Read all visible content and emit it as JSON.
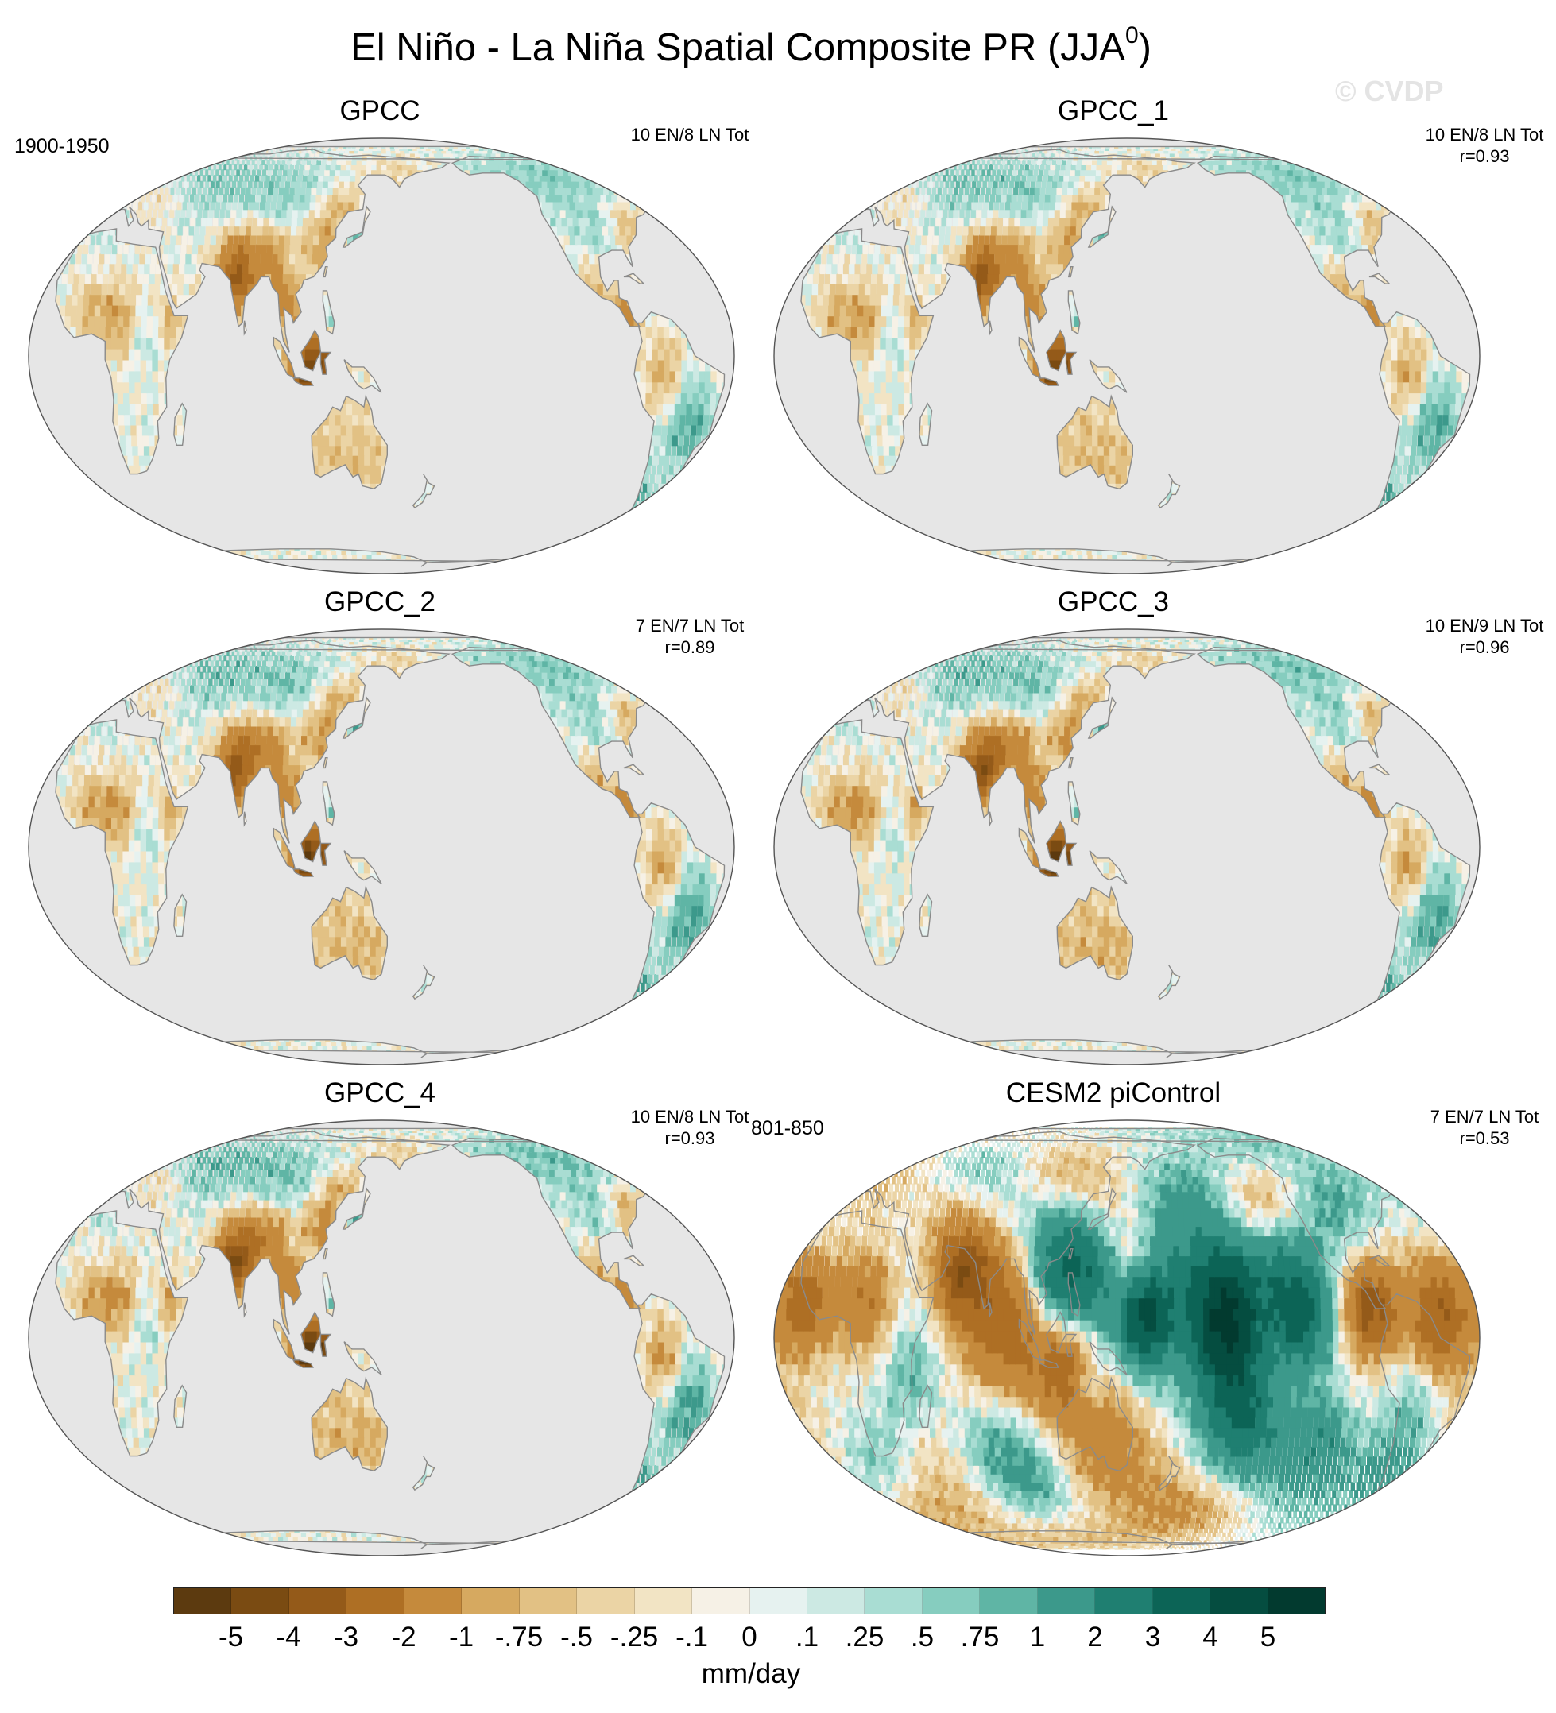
{
  "figure": {
    "title": "El Niño - La Niña Spatial Composite PR (JJA",
    "title_superscript": "0",
    "title_end": ")",
    "watermark": "© CVDP"
  },
  "panels": [
    {
      "title": "GPCC",
      "years": "1900-1950",
      "stats_line1": "10 EN/8 LN Tot",
      "stats_line2": "",
      "field": "observed"
    },
    {
      "title": "GPCC_1",
      "years": "",
      "stats_line1": "10 EN/8 LN Tot",
      "stats_line2": "r=0.93",
      "field": "observed"
    },
    {
      "title": "GPCC_2",
      "years": "",
      "stats_line1": "7 EN/7 LN Tot",
      "stats_line2": "r=0.89",
      "field": "observed"
    },
    {
      "title": "GPCC_3",
      "years": "",
      "stats_line1": "10 EN/9 LN Tot",
      "stats_line2": "r=0.96",
      "field": "observed"
    },
    {
      "title": "GPCC_4",
      "years": "",
      "stats_line1": "10 EN/8 LN Tot",
      "stats_line2": "r=0.93",
      "field": "observed"
    },
    {
      "title": "CESM2 piControl",
      "years": "801-850",
      "stats_line1": "7 EN/7 LN Tot",
      "stats_line2": "r=0.53",
      "field": "model"
    }
  ],
  "colorbar": {
    "colors": [
      "#5c3a0f",
      "#7a4b12",
      "#945a19",
      "#ae6f24",
      "#c58a3c",
      "#d6a960",
      "#e2c184",
      "#ebd4a5",
      "#f2e4c4",
      "#f6f1e6",
      "#e6f2f0",
      "#cce9e3",
      "#a9ddd3",
      "#86cdbf",
      "#5fb5a5",
      "#3c998b",
      "#1f7f71",
      "#0c6456",
      "#054d40",
      "#023a2f"
    ],
    "tick_labels": [
      "-5",
      "-4",
      "-3",
      "-2",
      "-1",
      "-.75",
      "-.5",
      "-.25",
      "-.1",
      "0",
      ".1",
      ".25",
      ".5",
      ".75",
      "1",
      "2",
      "3",
      "4",
      "5"
    ],
    "units": "mm/day"
  },
  "map_style": {
    "ocean_color": "#e6e6e6",
    "coast_color": "#8a8a8a"
  }
}
